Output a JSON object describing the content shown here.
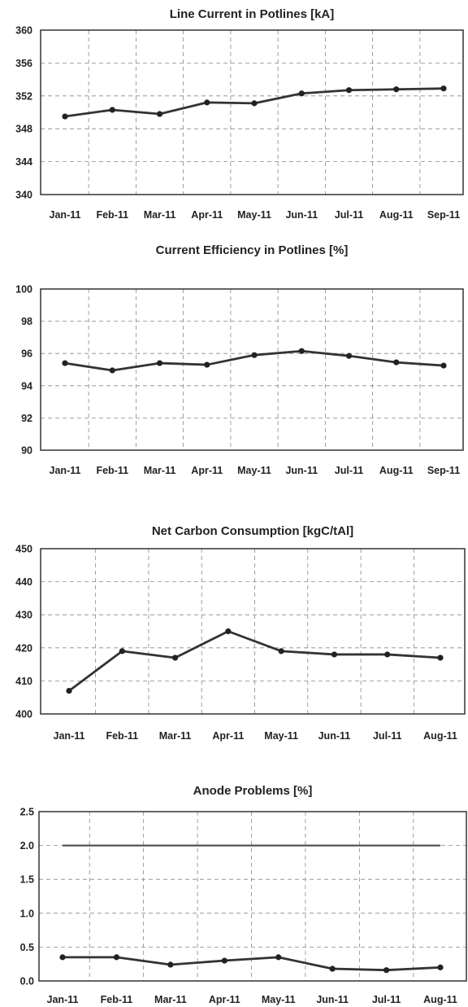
{
  "chart_data": [
    {
      "type": "line",
      "title": "Line Current in Potlines   [kA]",
      "categories": [
        "Jan-11",
        "Feb-11",
        "Mar-11",
        "Apr-11",
        "May-11",
        "Jun-11",
        "Jul-11",
        "Aug-11",
        "Sep-11"
      ],
      "series": [
        {
          "values": [
            349.5,
            350.3,
            349.8,
            351.2,
            351.1,
            352.3,
            352.7,
            352.8,
            352.9
          ],
          "markers": true
        }
      ],
      "ylim": [
        340,
        360
      ],
      "yticks": [
        "340",
        "344",
        "348",
        "352",
        "356",
        "360"
      ],
      "grid": true
    },
    {
      "type": "line",
      "title": "Current Efficiency in Potlines   [%]",
      "categories": [
        "Jan-11",
        "Feb-11",
        "Mar-11",
        "Apr-11",
        "May-11",
        "Jun-11",
        "Jul-11",
        "Aug-11",
        "Sep-11"
      ],
      "series": [
        {
          "values": [
            95.4,
            94.95,
            95.4,
            95.3,
            95.9,
            96.15,
            95.85,
            95.45,
            95.25
          ],
          "markers": true
        }
      ],
      "ylim": [
        90,
        100
      ],
      "yticks": [
        "90",
        "92",
        "94",
        "96",
        "98",
        "100"
      ],
      "grid": true
    },
    {
      "type": "line",
      "title": "Net Carbon Consumption   [kgC/tAl]",
      "categories": [
        "Jan-11",
        "Feb-11",
        "Mar-11",
        "Apr-11",
        "May-11",
        "Jun-11",
        "Jul-11",
        "Aug-11"
      ],
      "series": [
        {
          "values": [
            407,
            419,
            417,
            425,
            419,
            418,
            418,
            417
          ],
          "markers": true
        }
      ],
      "ylim": [
        400,
        450
      ],
      "yticks": [
        "400",
        "410",
        "420",
        "430",
        "440",
        "450"
      ],
      "grid": true
    },
    {
      "type": "line",
      "title": "Anode Problems   [%]",
      "categories": [
        "Jan-11",
        "Feb-11",
        "Mar-11",
        "Apr-11",
        "May-11",
        "Jun-11",
        "Jul-11",
        "Aug-11"
      ],
      "series": [
        {
          "values": [
            0.35,
            0.35,
            0.24,
            0.3,
            0.35,
            0.18,
            0.16,
            0.2
          ],
          "markers": true
        },
        {
          "values": [
            2.0,
            2.0,
            2.0,
            2.0,
            2.0,
            2.0,
            2.0,
            2.0
          ],
          "markers": false,
          "style": "reference"
        }
      ],
      "ylim": [
        0,
        2.5
      ],
      "yticks": [
        "0.0",
        "0.5",
        "1.0",
        "1.5",
        "2.0",
        "2.5"
      ],
      "grid": true
    }
  ]
}
